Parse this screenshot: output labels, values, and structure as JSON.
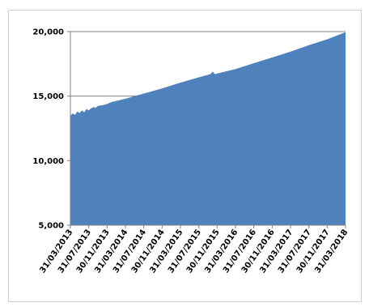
{
  "chart_data": {
    "type": "area",
    "title": "",
    "xlabel": "",
    "ylabel": "",
    "ylim": [
      5000,
      20000
    ],
    "yticks": [
      5000,
      10000,
      15000,
      20000
    ],
    "ytick_labels": [
      "5,000",
      "10,000",
      "15,000",
      "20,000"
    ],
    "gridlines": "horizontal",
    "legend": "none",
    "x_range": [
      "2013-03-31",
      "2018-03-31"
    ],
    "xtick_labels": [
      "31/03/2013",
      "31/07/2013",
      "30/11/2013",
      "31/03/2014",
      "31/07/2014",
      "30/11/2014",
      "31/03/2015",
      "31/07/2015",
      "30/11/2015",
      "31/03/2016",
      "31/07/2016",
      "30/11/2016",
      "31/03/2017",
      "31/07/2017",
      "30/11/2017",
      "31/03/2018"
    ],
    "series": [
      {
        "color": "#4f81bd",
        "points": [
          [
            "2013-03-31",
            13500
          ],
          [
            "2013-04-15",
            13650
          ],
          [
            "2013-05-01",
            13550
          ],
          [
            "2013-05-15",
            13800
          ],
          [
            "2013-06-01",
            13700
          ],
          [
            "2013-06-15",
            13900
          ],
          [
            "2013-07-01",
            13750
          ],
          [
            "2013-07-15",
            14000
          ],
          [
            "2013-07-31",
            13900
          ],
          [
            "2013-08-15",
            14050
          ],
          [
            "2013-09-01",
            14150
          ],
          [
            "2013-09-15",
            14100
          ],
          [
            "2013-10-01",
            14250
          ],
          [
            "2013-11-01",
            14300
          ],
          [
            "2013-11-30",
            14400
          ],
          [
            "2014-01-01",
            14550
          ],
          [
            "2014-03-31",
            14800
          ],
          [
            "2014-07-31",
            15200
          ],
          [
            "2014-11-30",
            15600
          ],
          [
            "2015-03-31",
            16050
          ],
          [
            "2015-07-31",
            16450
          ],
          [
            "2015-10-15",
            16700
          ],
          [
            "2015-11-01",
            16900
          ],
          [
            "2015-11-15",
            16700
          ],
          [
            "2015-11-30",
            16750
          ],
          [
            "2016-03-31",
            17100
          ],
          [
            "2016-07-31",
            17550
          ],
          [
            "2016-11-30",
            18000
          ],
          [
            "2017-03-31",
            18450
          ],
          [
            "2017-07-31",
            18950
          ],
          [
            "2017-11-30",
            19400
          ],
          [
            "2018-03-31",
            19950
          ]
        ]
      }
    ]
  }
}
